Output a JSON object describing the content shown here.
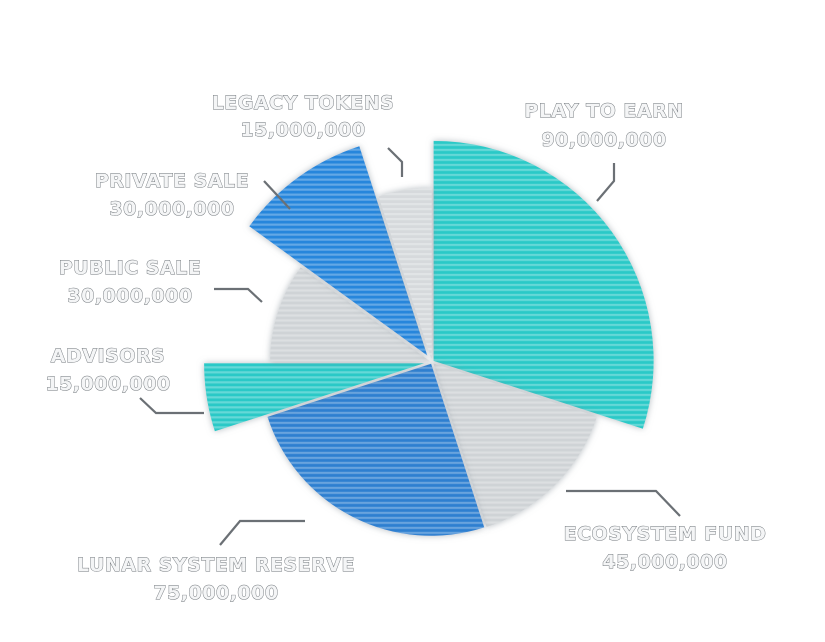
{
  "chart_data": {
    "type": "pie",
    "title": "",
    "slices": [
      {
        "label": "PLAY TO EARN",
        "value": 90000000,
        "value_text": "90,000,000",
        "color": "#2cc9c7",
        "radius": "large"
      },
      {
        "label": "ECOSYSTEM FUND",
        "value": 45000000,
        "value_text": "45,000,000",
        "color": "#cfd3d6",
        "radius": "medium"
      },
      {
        "label": "LUNAR SYSTEM RESERVE",
        "value": 75000000,
        "value_text": "75,000,000",
        "color": "#2f7fd0",
        "radius": "medium"
      },
      {
        "label": "ADVISORS",
        "value": 15000000,
        "value_text": "15,000,000",
        "color": "#2cc9c7",
        "radius": "large"
      },
      {
        "label": "PUBLIC SALE",
        "value": 30000000,
        "value_text": "30,000,000",
        "color": "#cfd3d6",
        "radius": "small"
      },
      {
        "label": "PRIVATE SALE",
        "value": 30000000,
        "value_text": "30,000,000",
        "color": "#2586dc",
        "radius": "large"
      },
      {
        "label": "LEGACY TOKENS",
        "value": 15000000,
        "value_text": "15,000,000",
        "color": "#d6d9dc",
        "radius": "medium"
      }
    ],
    "style": "exploded, varying-radius slices with horizontal stripe texture",
    "legend": "none (callout labels)"
  }
}
